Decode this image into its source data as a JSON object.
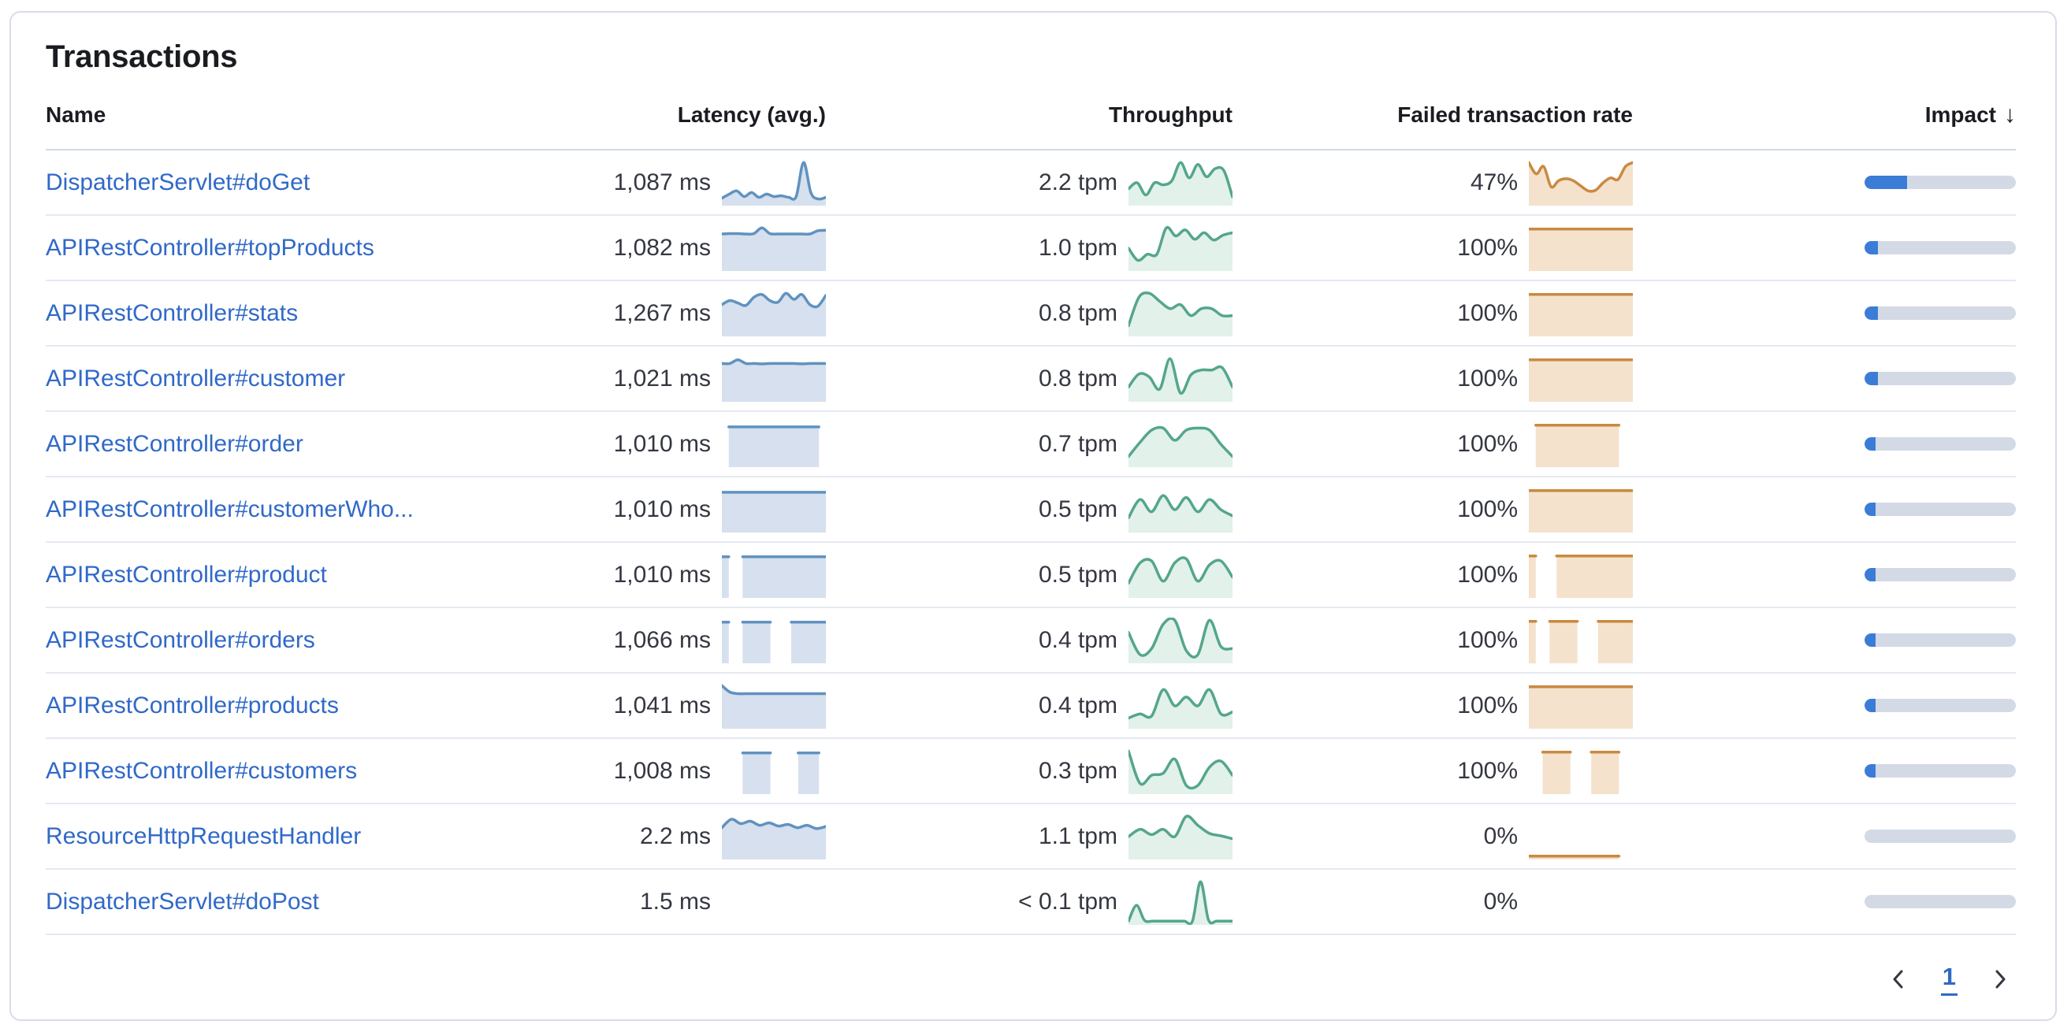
{
  "panel": {
    "title": "Transactions"
  },
  "colors": {
    "link": "#3069C8",
    "latency_line": "#6092C0",
    "latency_fill": "#D6E0EE",
    "throughput_line": "#54A68C",
    "throughput_fill": "#E2F1EA",
    "failed_line": "#C98A41",
    "failed_fill": "#F4E2CD",
    "impact_fill": "#3B7CD6",
    "impact_track": "#D3DAE6",
    "heading_text": "#1A1C21",
    "value_text": "#343741"
  },
  "table": {
    "columns": [
      {
        "label": "Name"
      },
      {
        "label": "Latency (avg.)"
      },
      {
        "label": "Throughput"
      },
      {
        "label": "Failed transaction rate"
      },
      {
        "label": "Impact",
        "sort": "desc",
        "sort_icon": "↓"
      }
    ],
    "rows": [
      {
        "name": "DispatcherServlet#doGet",
        "latency": "1,087 ms",
        "throughput": "2.2 tpm",
        "failed_rate": "47%",
        "impact_pct": 28,
        "latency_chart": [
          0.12,
          0.22,
          0.3,
          0.16,
          0.26,
          0.14,
          0.22,
          0.16,
          0.18,
          0.14,
          0.16,
          1.0,
          0.25,
          0.1,
          0.14
        ],
        "throughput_chart": [
          0.35,
          0.5,
          0.2,
          0.5,
          0.45,
          0.55,
          1.0,
          0.62,
          0.95,
          0.65,
          0.85,
          0.8,
          0.15
        ],
        "failed_chart": [
          1.0,
          0.72,
          0.9,
          0.4,
          0.55,
          0.6,
          0.55,
          0.42,
          0.3,
          0.32,
          0.5,
          0.62,
          0.58,
          0.9,
          1.0
        ]
      },
      {
        "name": "APIRestController#topProducts",
        "latency": "1,082 ms",
        "throughput": "1.0 tpm",
        "failed_rate": "100%",
        "impact_pct": 9,
        "latency_chart": [
          0.85,
          0.86,
          0.86,
          0.85,
          0.86,
          1.0,
          0.86,
          0.85,
          0.85,
          0.85,
          0.85,
          0.85,
          0.93,
          0.94
        ],
        "throughput_chart": [
          0.5,
          0.2,
          0.35,
          0.35,
          1.0,
          0.8,
          0.95,
          0.72,
          0.88,
          0.7,
          0.82,
          0.88
        ],
        "failed_chart": [
          0.97,
          0.97,
          0.97,
          0.97,
          0.97,
          0.97,
          0.97,
          0.97,
          0.97,
          0.97,
          0.97,
          0.97,
          0.97,
          0.97
        ]
      },
      {
        "name": "APIRestController#stats",
        "latency": "1,267 ms",
        "throughput": "0.8 tpm",
        "failed_rate": "100%",
        "impact_pct": 9,
        "latency_chart": [
          0.72,
          0.82,
          0.76,
          0.7,
          0.9,
          0.97,
          0.82,
          0.78,
          1.0,
          0.85,
          0.97,
          0.72,
          0.68,
          0.95
        ],
        "throughput_chart": [
          0.2,
          0.9,
          1.0,
          0.8,
          0.62,
          0.72,
          0.45,
          0.62,
          0.62,
          0.45,
          0.45
        ],
        "failed_chart": [
          0.97,
          0.97,
          0.97,
          0.97,
          0.97,
          0.97,
          0.97,
          0.97,
          0.97,
          0.97,
          0.97,
          0.97,
          0.97,
          0.97
        ]
      },
      {
        "name": "APIRestController#customer",
        "latency": "1,021 ms",
        "throughput": "0.8 tpm",
        "failed_rate": "100%",
        "impact_pct": 9,
        "latency_chart": [
          0.88,
          0.88,
          0.97,
          0.88,
          0.88,
          0.87,
          0.88,
          0.88,
          0.88,
          0.88,
          0.87,
          0.88,
          0.88,
          0.88
        ],
        "throughput_chart": [
          0.3,
          0.62,
          0.55,
          0.25,
          1.0,
          0.15,
          0.6,
          0.72,
          0.72,
          0.78,
          0.3
        ],
        "failed_chart": [
          0.97,
          0.97,
          0.97,
          0.97,
          0.97,
          0.97,
          0.97,
          0.97,
          0.97,
          0.97,
          0.97,
          0.97,
          0.97,
          0.97
        ]
      },
      {
        "name": "APIRestController#order",
        "latency": "1,010 ms",
        "throughput": "0.7 tpm",
        "failed_rate": "100%",
        "impact_pct": 7,
        "latency_chart": [
          null,
          0.93,
          0.93,
          0.93,
          0.93,
          0.93,
          0.93,
          0.93,
          0.93,
          0.93,
          0.93,
          0.93,
          0.93,
          0.93,
          0.93,
          null
        ],
        "throughput_chart": [
          0.2,
          0.55,
          0.85,
          0.9,
          0.6,
          0.85,
          0.9,
          0.85,
          0.5,
          0.2
        ],
        "failed_chart": [
          null,
          0.97,
          0.97,
          0.97,
          0.97,
          0.97,
          0.97,
          0.97,
          0.97,
          0.97,
          0.97,
          0.97,
          0.97,
          0.97,
          null,
          null
        ]
      },
      {
        "name": "APIRestController#customerWho...",
        "latency": "1,010 ms",
        "throughput": "0.5 tpm",
        "failed_rate": "100%",
        "impact_pct": 6,
        "latency_chart": [
          0.93,
          0.93,
          0.93,
          0.93,
          0.93,
          0.93,
          0.93,
          0.93,
          0.93,
          0.93,
          0.93,
          0.93,
          0.93,
          0.93
        ],
        "throughput_chart": [
          0.3,
          0.75,
          0.45,
          0.85,
          0.5,
          0.8,
          0.45,
          0.75,
          0.5,
          0.35
        ],
        "failed_chart": [
          0.97,
          0.97,
          0.97,
          0.97,
          0.97,
          0.97,
          0.97,
          0.97,
          0.97,
          0.97,
          0.97,
          0.97,
          0.97,
          0.97
        ]
      },
      {
        "name": "APIRestController#product",
        "latency": "1,010 ms",
        "throughput": "0.5 tpm",
        "failed_rate": "100%",
        "impact_pct": 6,
        "latency_chart": [
          0.95,
          0.95,
          null,
          0.95,
          0.95,
          0.95,
          0.95,
          0.95,
          0.95,
          0.95,
          0.95,
          0.95,
          0.95,
          0.95,
          0.95,
          0.95
        ],
        "throughput_chart": [
          0.3,
          0.8,
          0.85,
          0.35,
          0.8,
          0.9,
          0.35,
          0.75,
          0.85,
          0.45
        ],
        "failed_chart": [
          0.97,
          0.97,
          null,
          null,
          0.97,
          0.97,
          0.97,
          0.97,
          0.97,
          0.97,
          0.97,
          0.97,
          0.97,
          0.97,
          0.97,
          0.97
        ]
      },
      {
        "name": "APIRestController#orders",
        "latency": "1,066 ms",
        "throughput": "0.4 tpm",
        "failed_rate": "100%",
        "impact_pct": 5,
        "latency_chart": [
          0.95,
          0.95,
          null,
          0.95,
          0.95,
          0.95,
          0.95,
          0.95,
          null,
          null,
          0.95,
          0.95,
          0.95,
          0.95,
          0.95,
          0.95
        ],
        "throughput_chart": [
          0.7,
          0.15,
          0.3,
          0.9,
          1.0,
          0.25,
          0.15,
          1.0,
          0.35,
          0.3
        ],
        "failed_chart": [
          0.97,
          0.97,
          null,
          0.97,
          0.97,
          0.97,
          0.97,
          0.97,
          null,
          null,
          0.97,
          0.97,
          0.97,
          0.97,
          0.97,
          0.97
        ]
      },
      {
        "name": "APIRestController#products",
        "latency": "1,041 ms",
        "throughput": "0.4 tpm",
        "failed_rate": "100%",
        "impact_pct": 5,
        "latency_chart": [
          1.0,
          0.84,
          0.8,
          0.8,
          0.8,
          0.8,
          0.8,
          0.8,
          0.8,
          0.8,
          0.8,
          0.8,
          0.8,
          0.8
        ],
        "throughput_chart": [
          0.2,
          0.3,
          0.25,
          0.9,
          0.5,
          0.72,
          0.5,
          0.9,
          0.3,
          0.35
        ],
        "failed_chart": [
          0.97,
          0.97,
          0.97,
          0.97,
          0.97,
          0.97,
          0.97,
          0.97,
          0.97,
          0.97,
          0.97,
          0.97,
          0.97,
          0.97
        ]
      },
      {
        "name": "APIRestController#customers",
        "latency": "1,008 ms",
        "throughput": "0.3 tpm",
        "failed_rate": "100%",
        "impact_pct": 4.5,
        "latency_chart": [
          null,
          null,
          null,
          0.95,
          0.95,
          0.95,
          0.95,
          0.95,
          null,
          null,
          null,
          0.95,
          0.95,
          0.95,
          0.95,
          null
        ],
        "throughput_chart": [
          1.0,
          0.2,
          0.4,
          0.45,
          0.8,
          0.15,
          0.15,
          0.6,
          0.75,
          0.4
        ],
        "failed_chart": [
          null,
          null,
          0.97,
          0.97,
          0.97,
          0.97,
          0.97,
          null,
          null,
          0.97,
          0.97,
          0.97,
          0.97,
          0.97,
          null,
          null
        ]
      },
      {
        "name": "ResourceHttpRequestHandler",
        "latency": "2.2 ms",
        "throughput": "1.1 tpm",
        "failed_rate": "0%",
        "impact_pct": 0,
        "latency_chart": [
          0.72,
          0.93,
          0.82,
          0.88,
          0.78,
          0.84,
          0.76,
          0.8,
          0.72,
          0.78,
          0.7,
          0.75
        ],
        "throughput_chart": [
          0.5,
          0.68,
          0.55,
          0.68,
          0.5,
          1.0,
          0.78,
          0.58,
          0.52,
          0.45
        ],
        "failed_chart": [
          0.02,
          0.02,
          0.02,
          0.02,
          0.02,
          0.02,
          0.02,
          0.02,
          0.02,
          0.02,
          0.02,
          0.02,
          0.02,
          0.02,
          null,
          null
        ]
      },
      {
        "name": "DispatcherServlet#doPost",
        "latency": "1.5 ms",
        "throughput": "< 0.1 tpm",
        "failed_rate": "0%",
        "impact_pct": 0,
        "latency_chart": null,
        "throughput_chart": [
          0.03,
          0.42,
          0.05,
          0.03,
          0.03,
          0.03,
          0.03,
          0.03,
          0.03,
          1.0,
          0.06,
          0.03,
          0.03,
          0.03
        ],
        "failed_chart": null
      }
    ]
  },
  "pagination": {
    "current_page": "1"
  }
}
